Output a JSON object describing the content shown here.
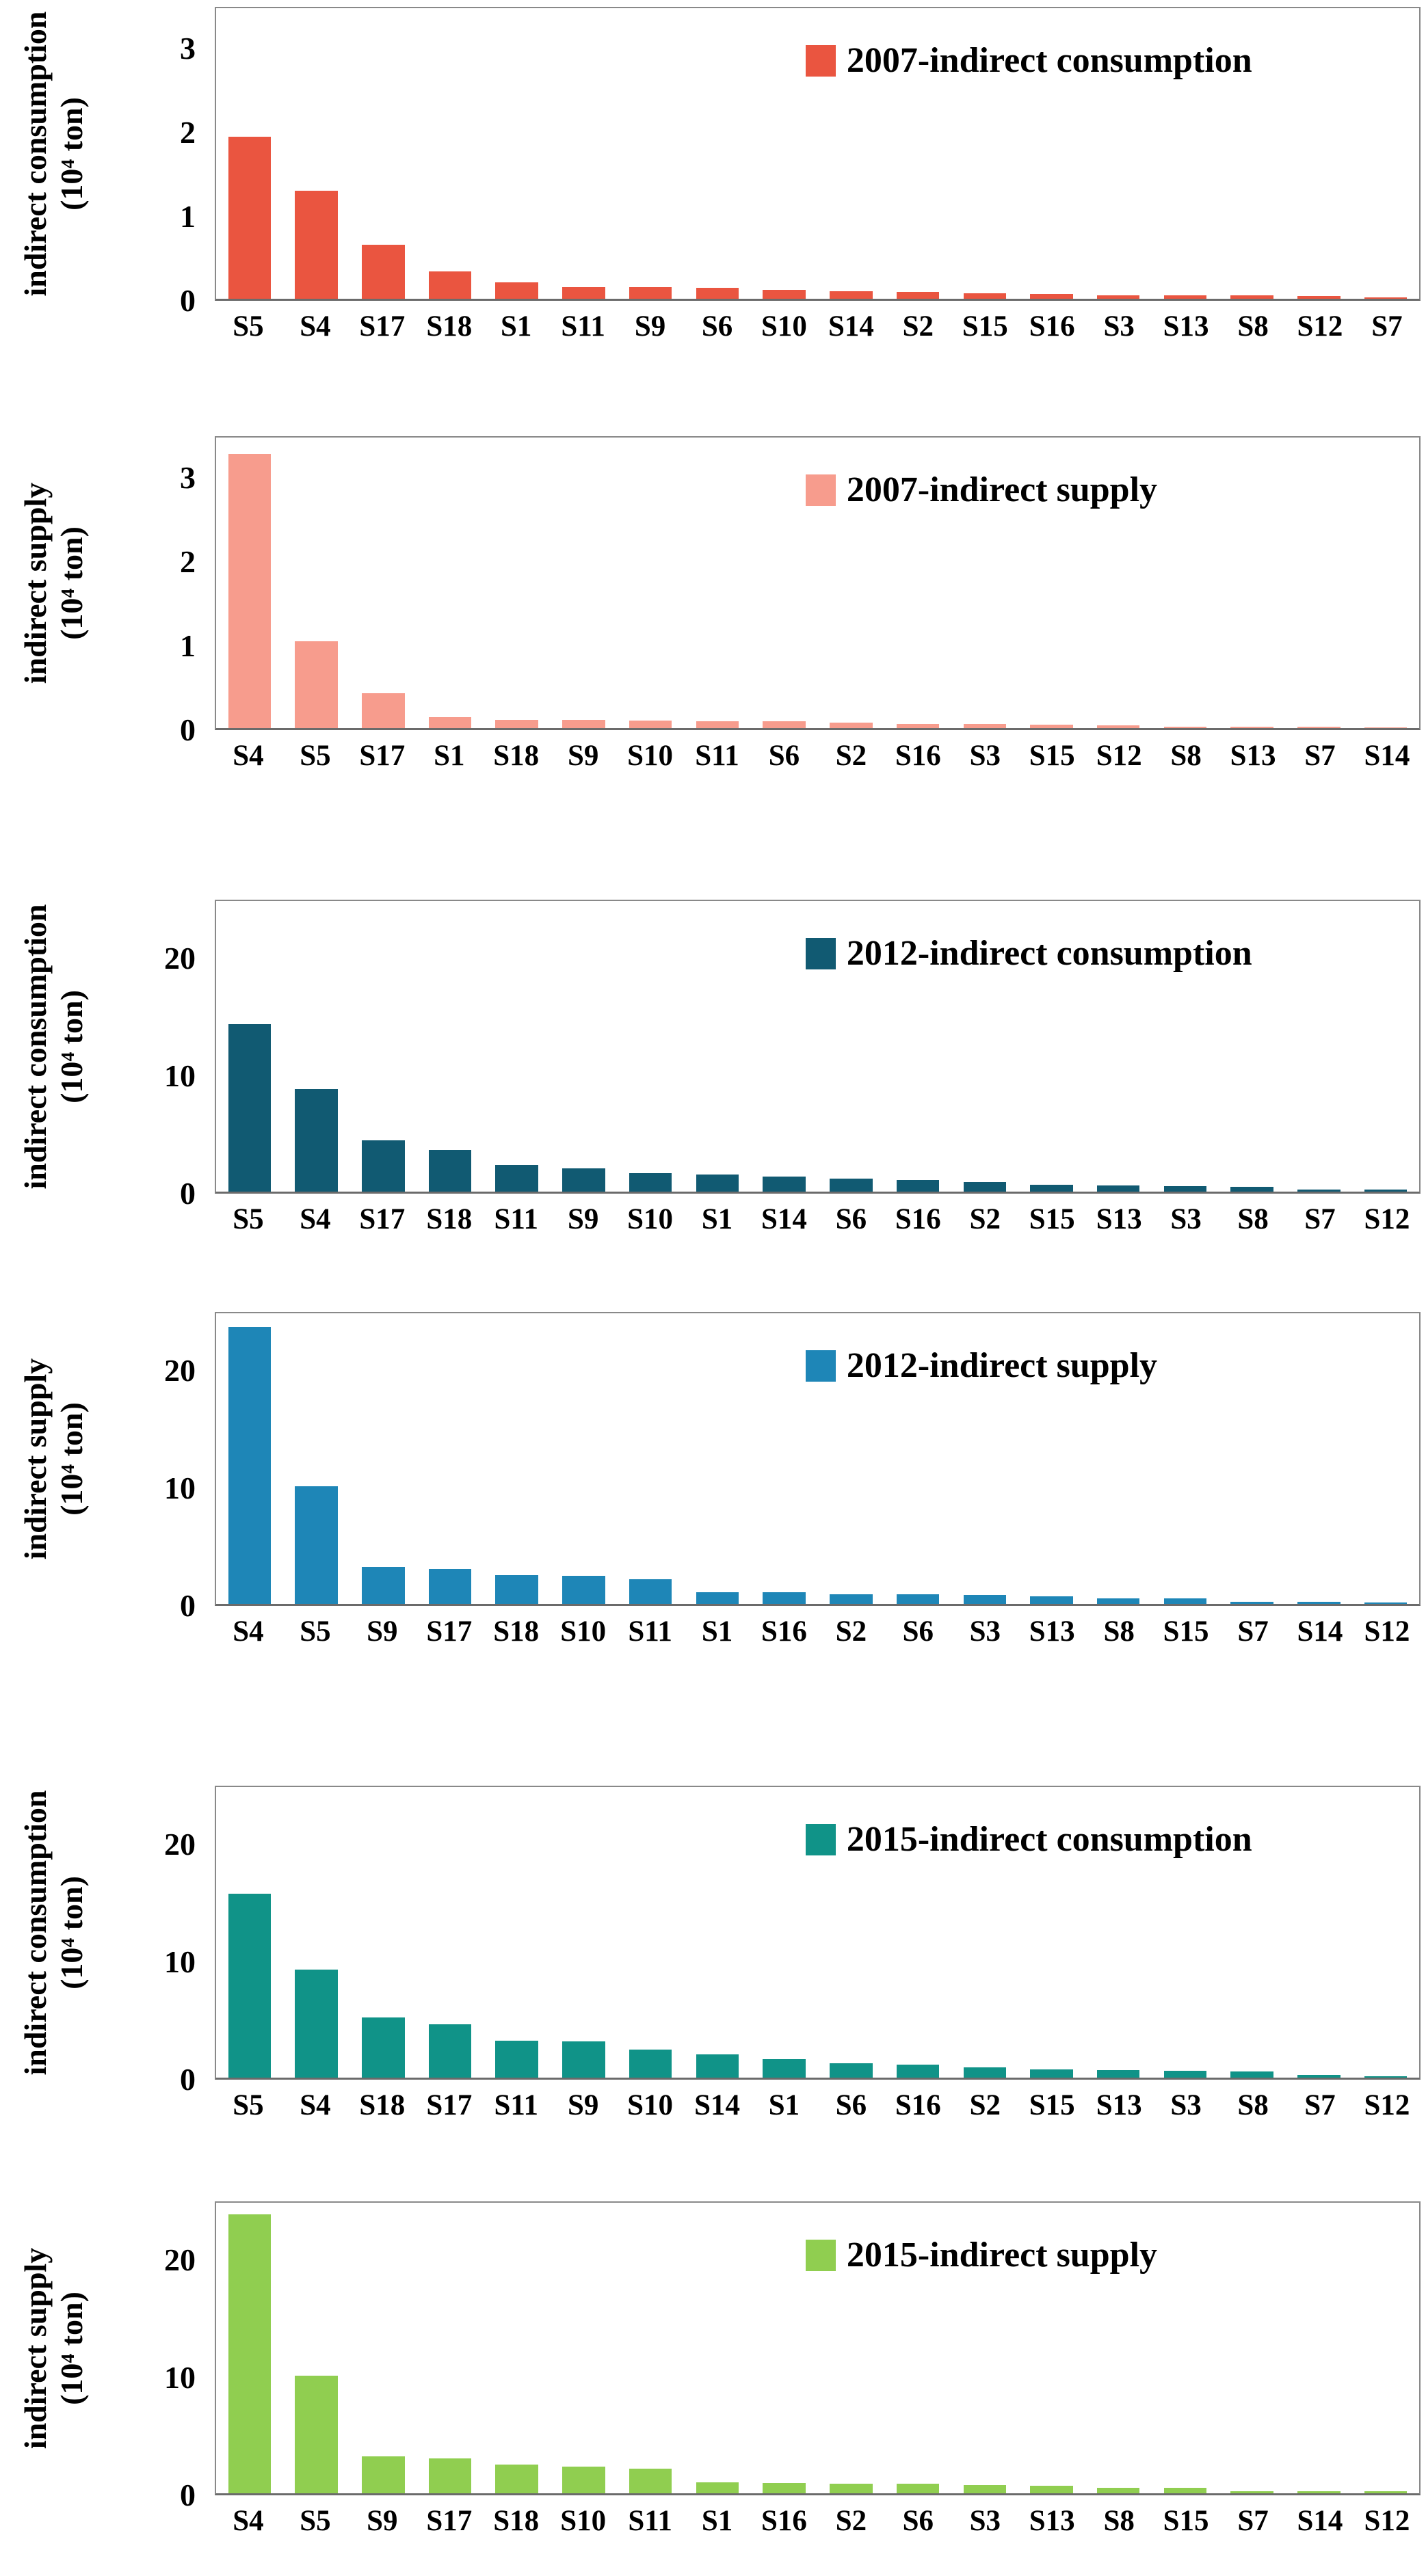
{
  "chart_data": [
    {
      "type": "bar",
      "legend_label": "2007-indirect consumption",
      "legend_position": "top-right-inside",
      "color": "#EA5540",
      "ylabel": "indirect consumption",
      "ylabel_unit": "(10⁴ ton)",
      "ylim": [
        0,
        3.5
      ],
      "yticks": [
        0,
        1,
        2,
        3
      ],
      "grid": false,
      "categories": [
        "S5",
        "S4",
        "S17",
        "S18",
        "S1",
        "S11",
        "S9",
        "S6",
        "S10",
        "S14",
        "S2",
        "S15",
        "S16",
        "S3",
        "S13",
        "S8",
        "S12",
        "S7"
      ],
      "values": [
        1.95,
        1.3,
        0.65,
        0.33,
        0.2,
        0.14,
        0.14,
        0.13,
        0.11,
        0.09,
        0.08,
        0.07,
        0.06,
        0.04,
        0.04,
        0.04,
        0.03,
        0.015
      ]
    },
    {
      "type": "bar",
      "legend_label": "2007-indirect supply",
      "legend_position": "top-right-inside",
      "color": "#F79C8D",
      "ylabel": "indirect supply",
      "ylabel_unit": "(10⁴ ton)",
      "ylim": [
        0,
        3.5
      ],
      "yticks": [
        0,
        1,
        2,
        3
      ],
      "grid": false,
      "categories": [
        "S4",
        "S5",
        "S17",
        "S1",
        "S18",
        "S9",
        "S10",
        "S11",
        "S6",
        "S2",
        "S16",
        "S3",
        "S15",
        "S12",
        "S8",
        "S13",
        "S7",
        "S14"
      ],
      "values": [
        3.3,
        1.05,
        0.42,
        0.13,
        0.1,
        0.1,
        0.09,
        0.08,
        0.08,
        0.07,
        0.05,
        0.05,
        0.04,
        0.03,
        0.02,
        0.02,
        0.015,
        0.01
      ]
    },
    {
      "type": "bar",
      "legend_label": "2012-indirect consumption",
      "legend_position": "top-right-inside",
      "color": "#115A72",
      "ylabel": "indirect consumption",
      "ylabel_unit": "(10⁴ ton)",
      "ylim": [
        0,
        25
      ],
      "yticks": [
        0,
        10,
        20
      ],
      "grid": false,
      "categories": [
        "S5",
        "S4",
        "S17",
        "S18",
        "S11",
        "S9",
        "S10",
        "S1",
        "S14",
        "S6",
        "S16",
        "S2",
        "S15",
        "S13",
        "S3",
        "S8",
        "S7",
        "S12"
      ],
      "values": [
        14.4,
        8.8,
        4.4,
        3.6,
        2.3,
        2.0,
        1.6,
        1.5,
        1.3,
        1.1,
        1.0,
        0.8,
        0.6,
        0.55,
        0.5,
        0.4,
        0.2,
        0.15
      ]
    },
    {
      "type": "bar",
      "legend_label": "2012-indirect supply",
      "legend_position": "top-right-inside",
      "color": "#1E86B7",
      "ylabel": "indirect supply",
      "ylabel_unit": "(10⁴ ton)",
      "ylim": [
        0,
        25
      ],
      "yticks": [
        0,
        10,
        20
      ],
      "grid": false,
      "categories": [
        "S4",
        "S5",
        "S9",
        "S17",
        "S18",
        "S10",
        "S11",
        "S1",
        "S16",
        "S2",
        "S6",
        "S3",
        "S13",
        "S8",
        "S15",
        "S7",
        "S14",
        "S12"
      ],
      "values": [
        23.8,
        10.1,
        3.2,
        3.0,
        2.5,
        2.4,
        2.1,
        1.0,
        1.0,
        0.85,
        0.8,
        0.75,
        0.65,
        0.5,
        0.45,
        0.15,
        0.15,
        0.12
      ]
    },
    {
      "type": "bar",
      "legend_label": "2015-indirect consumption",
      "legend_position": "top-right-inside",
      "color": "#109388",
      "ylabel": "indirect consumption",
      "ylabel_unit": "(10⁴ ton)",
      "ylim": [
        0,
        25
      ],
      "yticks": [
        0,
        10,
        20
      ],
      "grid": false,
      "categories": [
        "S5",
        "S4",
        "S18",
        "S17",
        "S11",
        "S9",
        "S10",
        "S14",
        "S1",
        "S6",
        "S16",
        "S2",
        "S15",
        "S13",
        "S3",
        "S8",
        "S7",
        "S12"
      ],
      "values": [
        15.8,
        9.3,
        5.2,
        4.6,
        3.2,
        3.1,
        2.4,
        2.0,
        1.6,
        1.25,
        1.1,
        0.9,
        0.7,
        0.65,
        0.6,
        0.55,
        0.25,
        0.12
      ]
    },
    {
      "type": "bar",
      "legend_label": "2015-indirect supply",
      "legend_position": "top-right-inside",
      "color": "#90CE50",
      "ylabel": "indirect supply",
      "ylabel_unit": "(10⁴ ton)",
      "ylim": [
        0,
        25
      ],
      "yticks": [
        0,
        10,
        20
      ],
      "grid": false,
      "categories": [
        "S4",
        "S5",
        "S9",
        "S17",
        "S18",
        "S10",
        "S11",
        "S1",
        "S16",
        "S2",
        "S6",
        "S3",
        "S13",
        "S8",
        "S15",
        "S7",
        "S14",
        "S12"
      ],
      "values": [
        24.0,
        10.1,
        3.2,
        3.0,
        2.5,
        2.3,
        2.1,
        0.95,
        0.9,
        0.8,
        0.8,
        0.7,
        0.65,
        0.5,
        0.5,
        0.2,
        0.2,
        0.15
      ]
    }
  ]
}
